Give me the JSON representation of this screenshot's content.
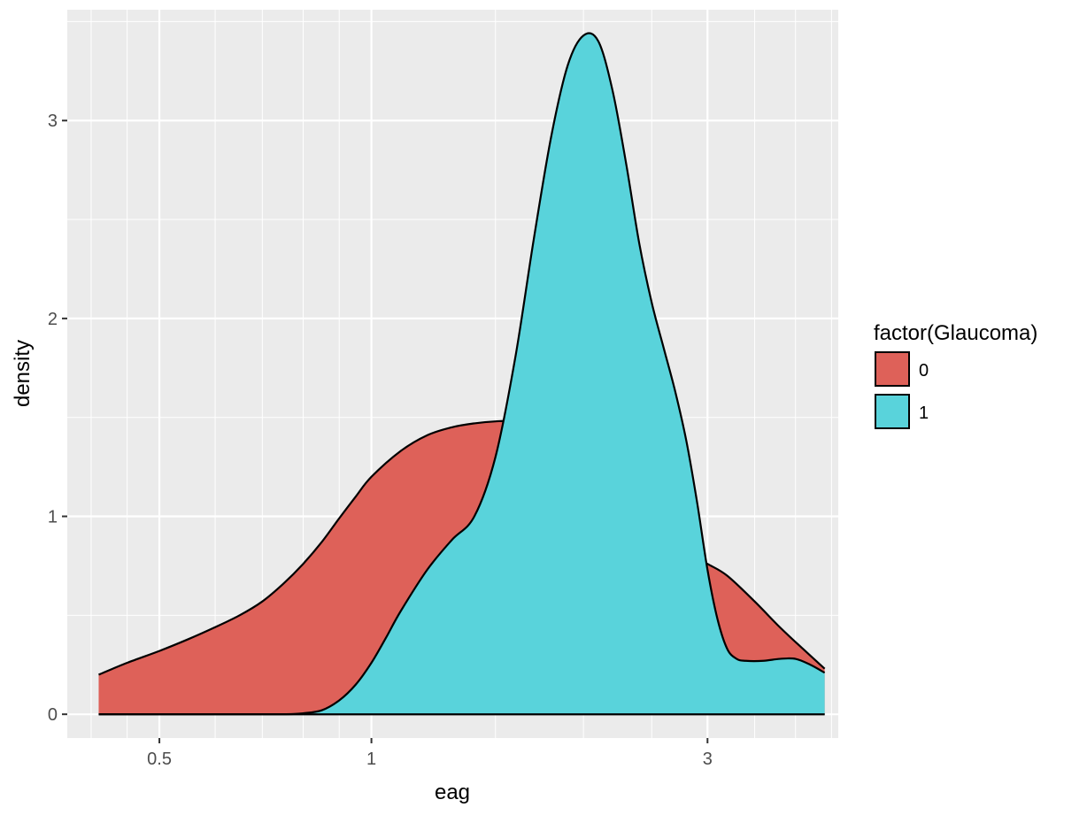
{
  "chart_data": {
    "type": "area",
    "subtype": "density",
    "xlabel": "eag",
    "ylabel": "density",
    "x_scale": "log10",
    "xlim": [
      0.37,
      4.6
    ],
    "ylim": [
      -0.12,
      3.56
    ],
    "x_ticks": [
      0.5,
      1,
      3
    ],
    "x_tick_labels": [
      "0.5",
      "1",
      "3"
    ],
    "y_ticks": [
      0,
      1,
      2,
      3
    ],
    "y_tick_labels": [
      "0",
      "1",
      "2",
      "3"
    ],
    "grid": true,
    "legend": {
      "title": "factor(Glaucoma)",
      "position": "right",
      "entries": [
        {
          "label": "0",
          "color": "#DE6159"
        },
        {
          "label": "1",
          "color": "#59D3DB"
        }
      ]
    },
    "series": [
      {
        "label": "0",
        "color": "#DE6159",
        "x": [
          0.41,
          0.45,
          0.5,
          0.55,
          0.6,
          0.65,
          0.7,
          0.75,
          0.8,
          0.85,
          0.9,
          0.95,
          1.0,
          1.1,
          1.2,
          1.3,
          1.4,
          1.5,
          1.6,
          1.7,
          1.8,
          2.0,
          2.2,
          2.4,
          2.6,
          2.8,
          3.0,
          3.2,
          3.5,
          3.8,
          4.1,
          4.4
        ],
        "y": [
          0.2,
          0.26,
          0.32,
          0.38,
          0.44,
          0.5,
          0.57,
          0.66,
          0.76,
          0.87,
          0.99,
          1.1,
          1.2,
          1.33,
          1.41,
          1.45,
          1.47,
          1.48,
          1.48,
          1.45,
          1.39,
          1.25,
          1.12,
          1.0,
          0.9,
          0.82,
          0.76,
          0.7,
          0.57,
          0.44,
          0.33,
          0.23
        ]
      },
      {
        "label": "1",
        "color": "#59D3DB",
        "x": [
          0.41,
          0.6,
          0.75,
          0.8,
          0.85,
          0.9,
          0.95,
          1.0,
          1.05,
          1.1,
          1.2,
          1.3,
          1.4,
          1.5,
          1.6,
          1.7,
          1.8,
          1.9,
          2.0,
          2.1,
          2.2,
          2.3,
          2.4,
          2.5,
          2.6,
          2.7,
          2.8,
          2.9,
          3.0,
          3.1,
          3.2,
          3.3,
          3.4,
          3.6,
          3.8,
          4.0,
          4.2,
          4.4
        ],
        "y": [
          0.0,
          0.0,
          0.0,
          0.005,
          0.02,
          0.07,
          0.15,
          0.26,
          0.39,
          0.52,
          0.73,
          0.88,
          1.0,
          1.3,
          1.8,
          2.4,
          2.92,
          3.28,
          3.43,
          3.4,
          3.15,
          2.78,
          2.38,
          2.08,
          1.85,
          1.63,
          1.38,
          1.07,
          0.73,
          0.48,
          0.33,
          0.28,
          0.27,
          0.27,
          0.28,
          0.28,
          0.25,
          0.21
        ]
      }
    ]
  }
}
